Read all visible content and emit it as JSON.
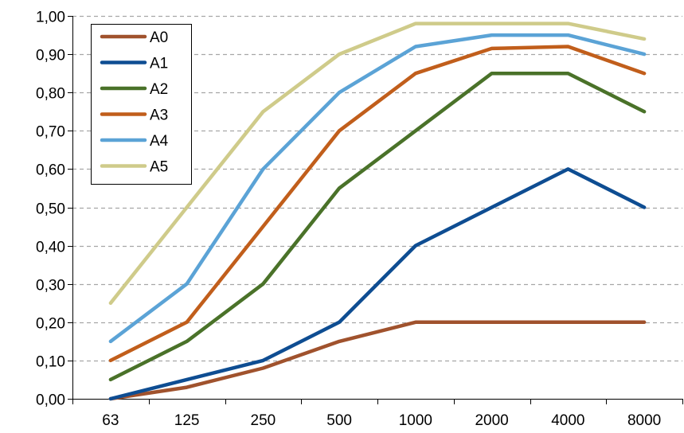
{
  "chart_data": {
    "type": "line",
    "title": "",
    "xlabel": "",
    "ylabel": "",
    "categories": [
      "63",
      "125",
      "250",
      "500",
      "1000",
      "2000",
      "4000",
      "8000"
    ],
    "ylim": [
      0,
      1
    ],
    "y_ticks": [
      "0,00",
      "0,10",
      "0,20",
      "0,30",
      "0,40",
      "0,50",
      "0,60",
      "0,70",
      "0,80",
      "0,90",
      "1,00"
    ],
    "grid": "horizontal dashed",
    "legend_position": "top-left",
    "series": [
      {
        "name": "A0",
        "color": "#A0522D",
        "values": [
          0.0,
          0.03,
          0.08,
          0.15,
          0.2,
          0.2,
          0.2,
          0.2
        ]
      },
      {
        "name": "A1",
        "color": "#0E4D92",
        "values": [
          0.0,
          0.05,
          0.1,
          0.2,
          0.4,
          0.5,
          0.6,
          0.5
        ]
      },
      {
        "name": "A2",
        "color": "#4A7229",
        "values": [
          0.05,
          0.15,
          0.3,
          0.55,
          0.7,
          0.85,
          0.85,
          0.75
        ]
      },
      {
        "name": "A3",
        "color": "#C15E1B",
        "values": [
          0.1,
          0.2,
          0.45,
          0.7,
          0.85,
          0.915,
          0.92,
          0.85
        ]
      },
      {
        "name": "A4",
        "color": "#5BA3D6",
        "values": [
          0.15,
          0.3,
          0.6,
          0.8,
          0.92,
          0.95,
          0.95,
          0.9
        ]
      },
      {
        "name": "A5",
        "color": "#CFCB8A",
        "values": [
          0.25,
          0.5,
          0.75,
          0.9,
          0.98,
          0.98,
          0.98,
          0.94
        ]
      }
    ]
  }
}
